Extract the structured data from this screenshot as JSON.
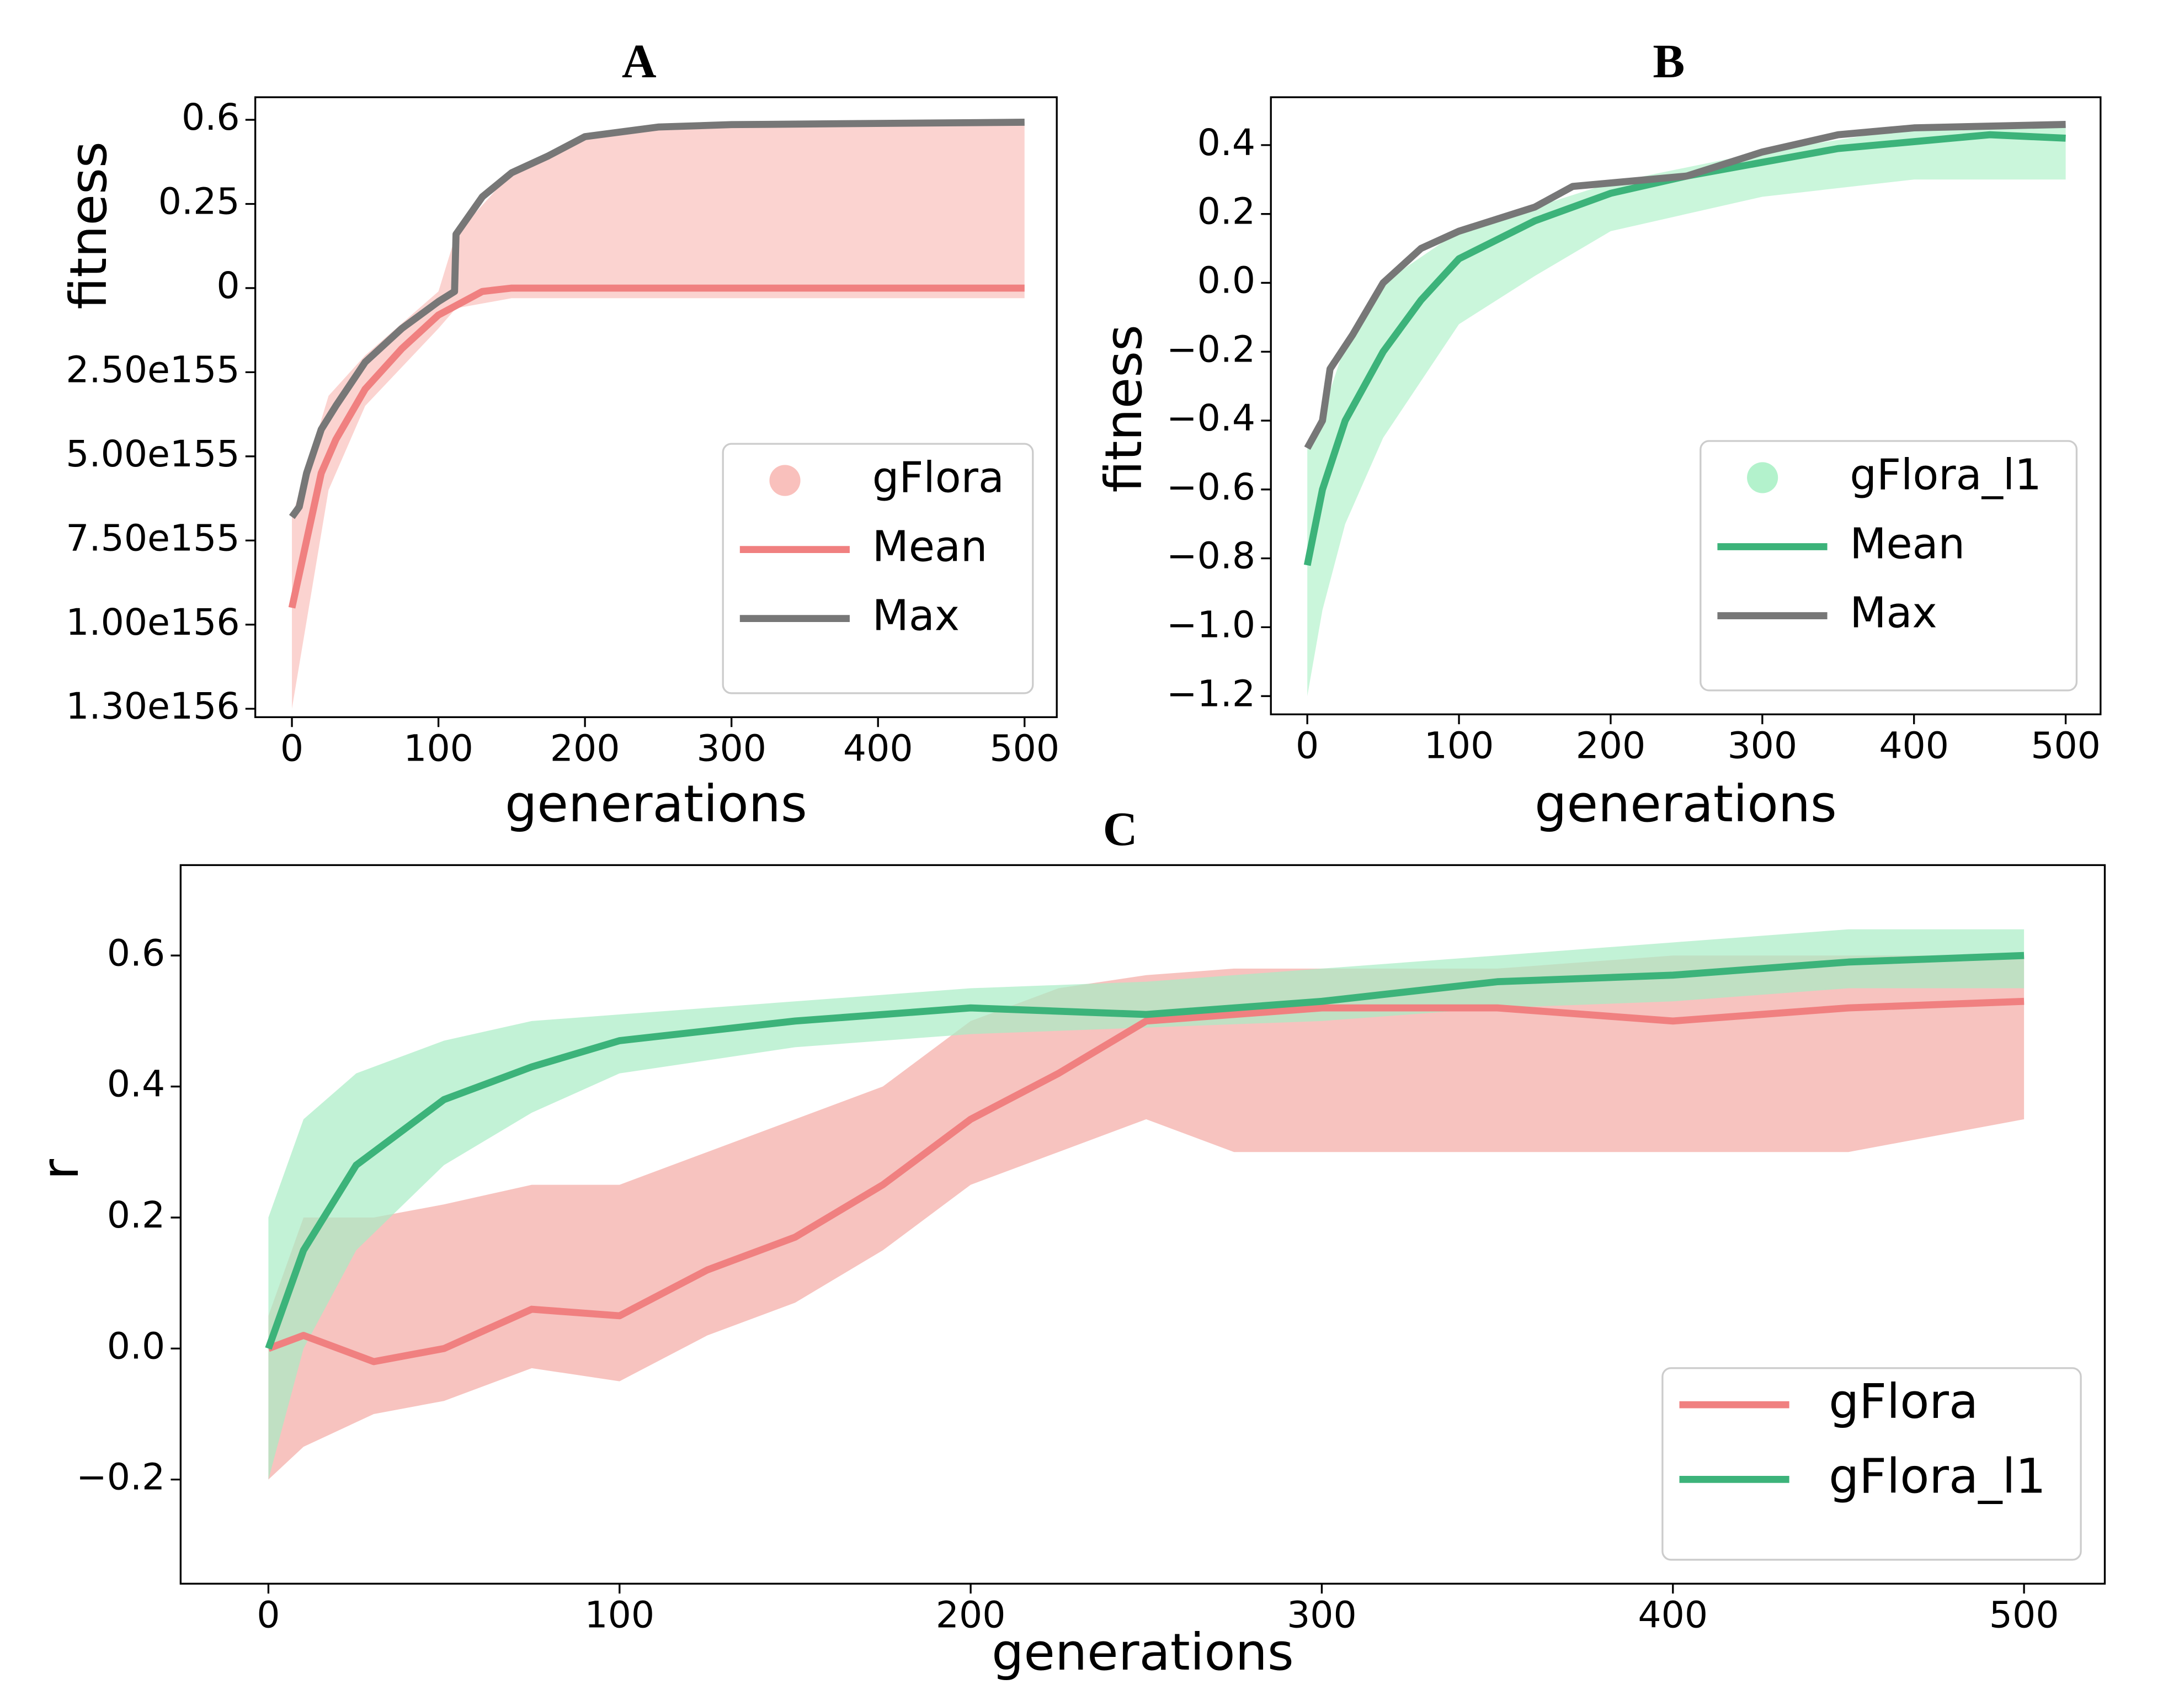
{
  "chart_data": [
    {
      "type": "line",
      "title": "A",
      "xlabel": "generations",
      "ylabel": "fitness",
      "xlim": [
        -25,
        522
      ],
      "xticks": [
        0,
        100,
        200,
        300,
        400,
        500
      ],
      "yscale": "tick-piecewise",
      "ylim": [
        -1.33e+156,
        0.694
      ],
      "yticks": [
        {
          "value": -1.3e+156,
          "label": "1.30e156"
        },
        {
          "value": -1e+156,
          "label": "1.00e156"
        },
        {
          "value": -7.5e+155,
          "label": "7.50e155"
        },
        {
          "value": -5e+155,
          "label": "5.00e155"
        },
        {
          "value": -2.5e+155,
          "label": "2.50e155"
        },
        0,
        0.25,
        0.6
      ],
      "legend": "lower right",
      "series": [
        {
          "name": "gFlora",
          "kind": "scatter-band",
          "color": "#f9c0bc",
          "x": [
            0,
            25,
            50,
            100,
            112,
            150,
            200,
            250,
            300,
            500
          ],
          "lower": [
            -1.3e+156,
            -6e+155,
            -3.5e+155,
            -1.2e+155,
            -6e+154,
            -3e+154,
            -3e+154,
            -3e+154,
            -3e+154,
            -3e+154
          ],
          "upper": [
            -6.8e+155,
            -3.2e+155,
            -2e+155,
            -1e+154,
            0.16,
            0.38,
            0.53,
            0.57,
            0.58,
            0.59
          ]
        },
        {
          "name": "Mean",
          "kind": "line",
          "color": "#f08080",
          "x": [
            0,
            10,
            20,
            30,
            50,
            75,
            100,
            130,
            150,
            300,
            500
          ],
          "values": [
            -9.5e+155,
            -7.5e+155,
            -5.5e+155,
            -4.5e+155,
            -3e+155,
            -1.8e+155,
            -8e+154,
            -1e+154,
            0,
            0,
            0
          ]
        },
        {
          "name": "Max",
          "kind": "line",
          "color": "#777777",
          "x": [
            0,
            5,
            10,
            20,
            30,
            50,
            75,
            100,
            111,
            112,
            130,
            150,
            175,
            200,
            250,
            300,
            500
          ],
          "values": [
            -6.8e+155,
            -6.5e+155,
            -5.5e+155,
            -4.2e+155,
            -3.5e+155,
            -2.2e+155,
            -1.2e+155,
            -4e+154,
            -1e+154,
            0.16,
            0.28,
            0.38,
            0.45,
            0.53,
            0.57,
            0.58,
            0.59
          ]
        }
      ]
    },
    {
      "type": "line",
      "title": "B",
      "xlabel": "generations",
      "ylabel": "fitness",
      "xlim": [
        -24,
        523
      ],
      "xticks": [
        0,
        100,
        200,
        300,
        400,
        500
      ],
      "ylim": [
        -1.253,
        0.539
      ],
      "yticks": [
        {
          "value": -1.2,
          "label": "−1.2"
        },
        {
          "value": -1.0,
          "label": "−1.0"
        },
        {
          "value": -0.8,
          "label": "−0.8"
        },
        {
          "value": -0.6,
          "label": "−0.6"
        },
        {
          "value": -0.4,
          "label": "−0.4"
        },
        {
          "value": -0.2,
          "label": "−0.2"
        },
        {
          "value": 0,
          "label": "0.0"
        },
        0.2,
        0.4
      ],
      "legend": "lower right",
      "series": [
        {
          "name": "gFlora_l1",
          "kind": "scatter-band",
          "color": "#b3f2cc",
          "x": [
            0,
            10,
            25,
            50,
            100,
            150,
            200,
            300,
            400,
            500
          ],
          "lower": [
            -1.2,
            -0.95,
            -0.7,
            -0.45,
            -0.12,
            0.02,
            0.15,
            0.25,
            0.3,
            0.3
          ],
          "upper": [
            -0.48,
            -0.38,
            -0.18,
            0,
            0.15,
            0.22,
            0.29,
            0.38,
            0.45,
            0.46
          ]
        },
        {
          "name": "Mean",
          "kind": "line",
          "color": "#3cb37a",
          "x": [
            0,
            10,
            25,
            50,
            75,
            100,
            150,
            200,
            250,
            300,
            350,
            400,
            450,
            500
          ],
          "values": [
            -0.82,
            -0.6,
            -0.4,
            -0.2,
            -0.05,
            0.07,
            0.18,
            0.26,
            0.31,
            0.35,
            0.39,
            0.41,
            0.43,
            0.42
          ]
        },
        {
          "name": "Max",
          "kind": "line",
          "color": "#777777",
          "x": [
            0,
            10,
            15,
            30,
            50,
            75,
            100,
            150,
            175,
            200,
            250,
            300,
            350,
            400,
            500
          ],
          "values": [
            -0.48,
            -0.4,
            -0.25,
            -0.15,
            0,
            0.1,
            0.15,
            0.22,
            0.28,
            0.29,
            0.31,
            0.38,
            0.43,
            0.45,
            0.46
          ]
        }
      ]
    },
    {
      "type": "line",
      "title": "C",
      "xlabel": "generations",
      "ylabel": "r",
      "xlim": [
        -25,
        523
      ],
      "xticks": [
        0,
        100,
        200,
        300,
        400,
        500
      ],
      "ylim": [
        -0.359,
        0.738
      ],
      "yticks": [
        {
          "value": -0.2,
          "label": "−0.2"
        },
        {
          "value": 0,
          "label": "0.0"
        },
        0.2,
        0.4,
        0.6
      ],
      "legend": "lower right",
      "series": [
        {
          "name": "gFlora",
          "kind": "line",
          "color": "#f08080",
          "band_color": "#f4aaa4",
          "x": [
            0,
            10,
            30,
            50,
            75,
            100,
            125,
            150,
            175,
            200,
            225,
            250,
            275,
            300,
            350,
            400,
            450,
            500
          ],
          "values": [
            0,
            0.02,
            -0.02,
            0,
            0.06,
            0.05,
            0.12,
            0.17,
            0.25,
            0.35,
            0.42,
            0.5,
            0.51,
            0.52,
            0.52,
            0.5,
            0.52,
            0.53
          ],
          "band_lower": [
            -0.2,
            -0.15,
            -0.1,
            -0.08,
            -0.03,
            -0.05,
            0.02,
            0.07,
            0.15,
            0.25,
            0.3,
            0.35,
            0.3,
            0.3,
            0.3,
            0.3,
            0.3,
            0.35
          ],
          "band_upper": [
            0.05,
            0.2,
            0.2,
            0.22,
            0.25,
            0.25,
            0.3,
            0.35,
            0.4,
            0.5,
            0.55,
            0.57,
            0.58,
            0.58,
            0.58,
            0.6,
            0.6,
            0.6
          ]
        },
        {
          "name": "gFlora_l1",
          "kind": "line",
          "color": "#3cb37a",
          "band_color": "#a8ecc4",
          "x": [
            0,
            10,
            25,
            50,
            75,
            100,
            150,
            200,
            250,
            300,
            350,
            400,
            450,
            500
          ],
          "values": [
            0,
            0.15,
            0.28,
            0.38,
            0.43,
            0.47,
            0.5,
            0.52,
            0.51,
            0.53,
            0.56,
            0.57,
            0.59,
            0.6
          ],
          "band_lower": [
            -0.2,
            0,
            0.15,
            0.28,
            0.36,
            0.42,
            0.46,
            0.48,
            0.49,
            0.5,
            0.52,
            0.53,
            0.55,
            0.55
          ],
          "band_upper": [
            0.2,
            0.35,
            0.42,
            0.47,
            0.5,
            0.51,
            0.53,
            0.55,
            0.56,
            0.58,
            0.6,
            0.62,
            0.64,
            0.64
          ]
        }
      ]
    }
  ]
}
